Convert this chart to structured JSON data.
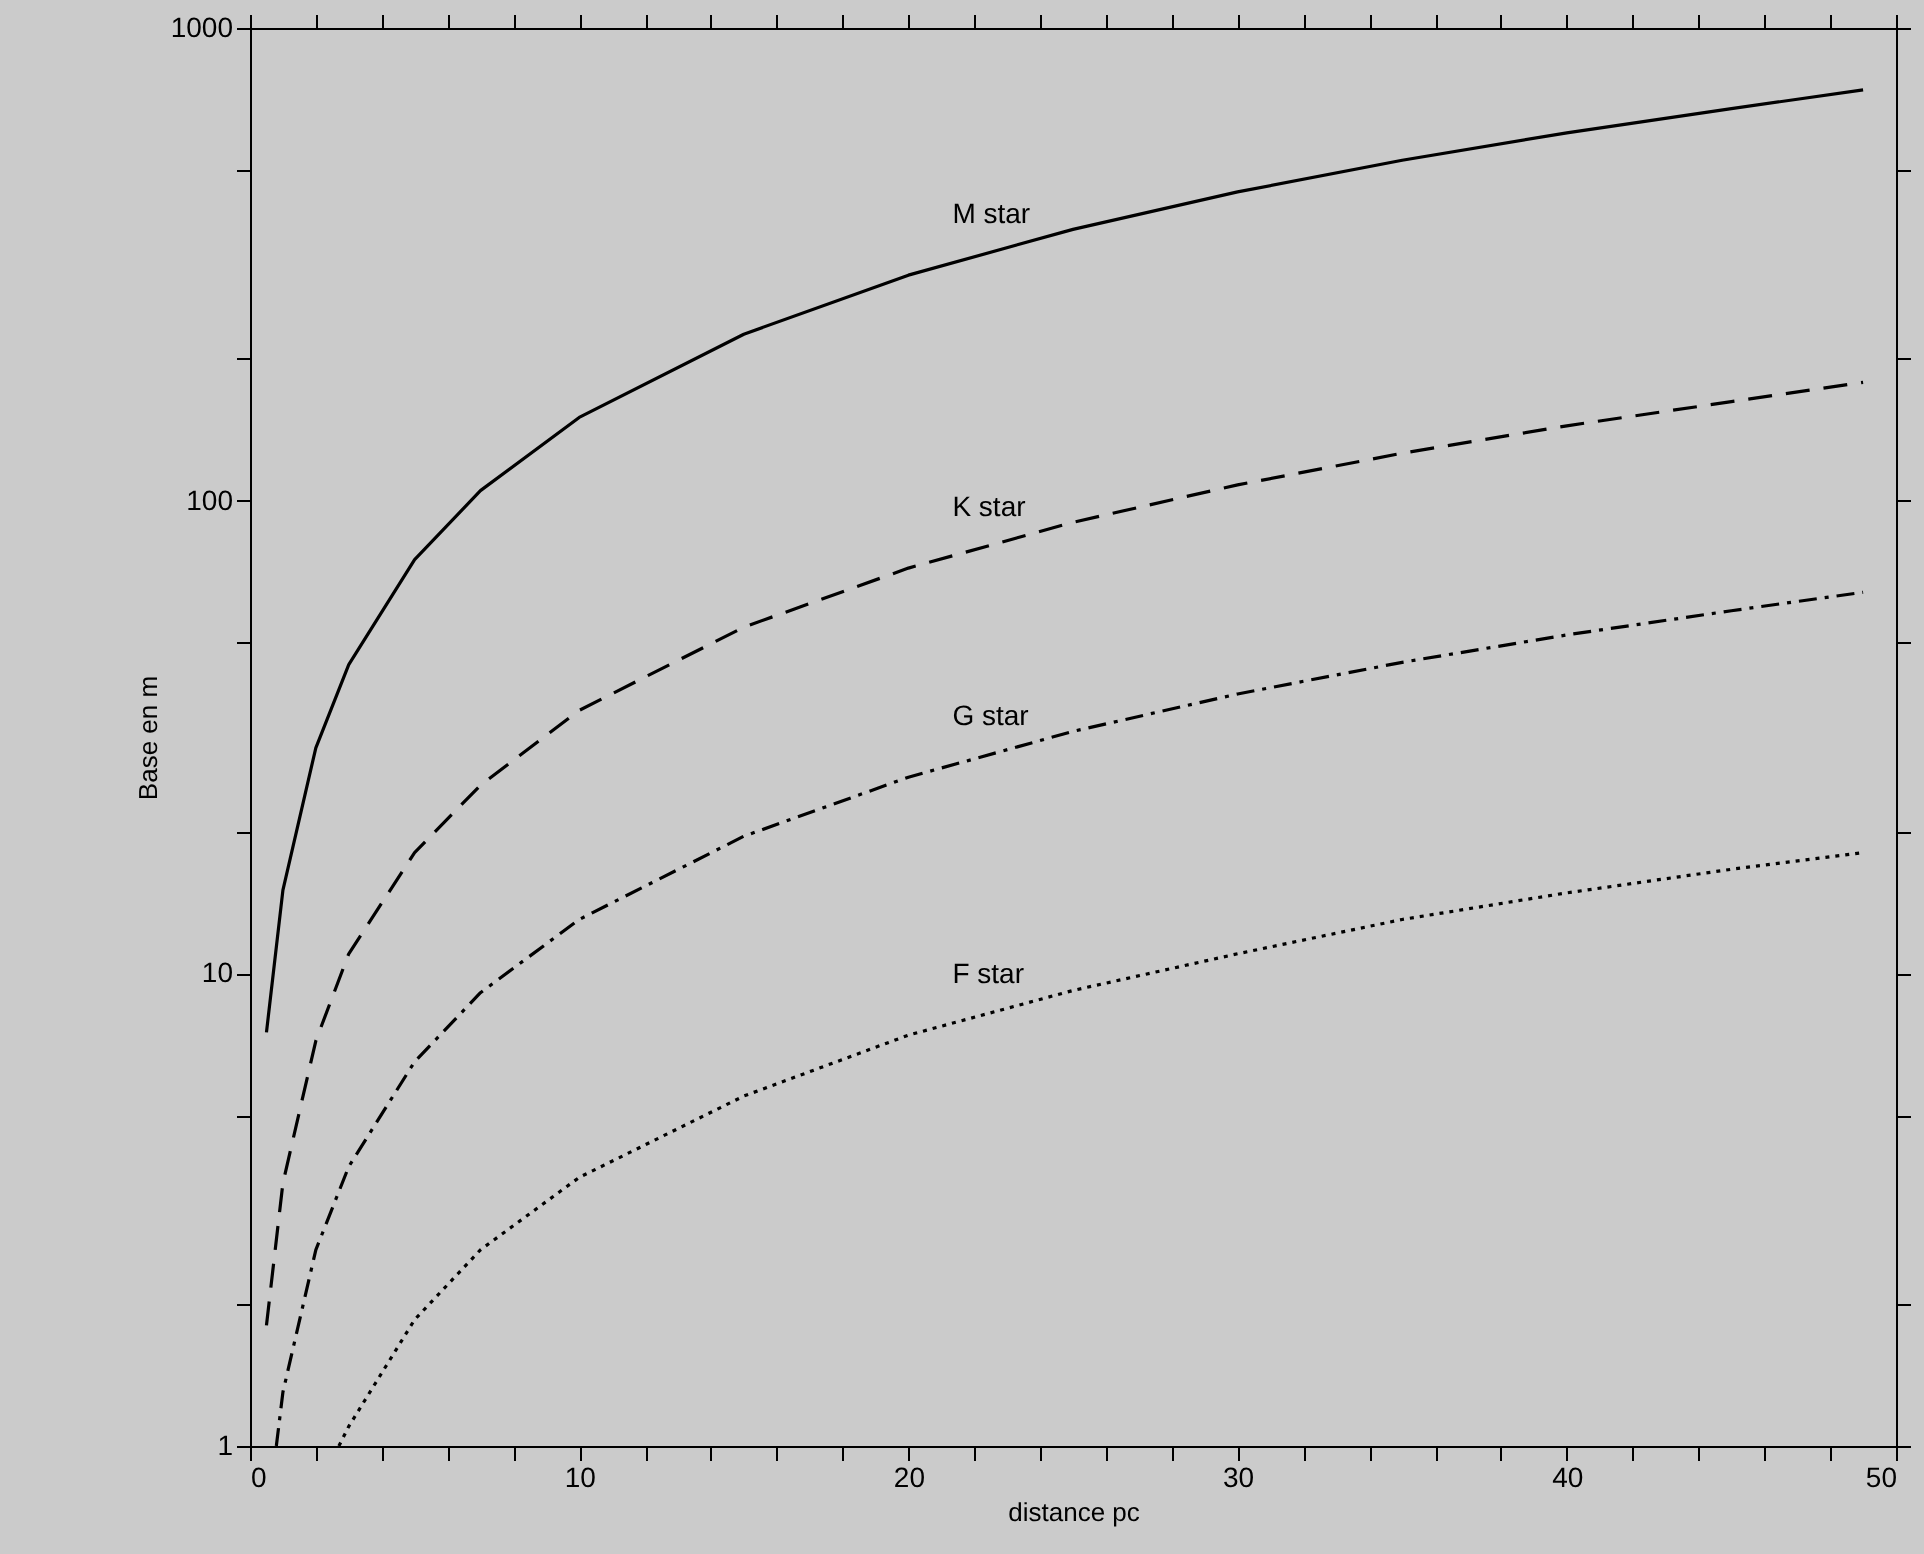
{
  "chart_data": {
    "type": "line",
    "xlabel": "distance pc",
    "ylabel": "Base en m",
    "log": "y",
    "grid": false,
    "marker": "none",
    "xlim": [
      0,
      50
    ],
    "ylim": [
      1,
      1000
    ],
    "xticks": [
      0,
      {
        "value": 2,
        "label": null
      },
      {
        "value": 4,
        "label": null
      },
      {
        "value": 6,
        "label": null
      },
      {
        "value": 8,
        "label": null
      },
      10,
      {
        "value": 12,
        "label": null
      },
      {
        "value": 14,
        "label": null
      },
      {
        "value": 16,
        "label": null
      },
      {
        "value": 18,
        "label": null
      },
      20,
      {
        "value": 22,
        "label": null
      },
      {
        "value": 24,
        "label": null
      },
      {
        "value": 26,
        "label": null
      },
      {
        "value": 28,
        "label": null
      },
      30,
      {
        "value": 32,
        "label": null
      },
      {
        "value": 34,
        "label": null
      },
      {
        "value": 36,
        "label": null
      },
      {
        "value": 38,
        "label": null
      },
      40,
      {
        "value": 42,
        "label": null
      },
      {
        "value": 44,
        "label": null
      },
      {
        "value": 46,
        "label": null
      },
      {
        "value": 48,
        "label": null
      },
      50
    ],
    "yticks": [
      1,
      {
        "value": 2,
        "label": null
      },
      {
        "value": 5,
        "label": null
      },
      10,
      {
        "value": 20,
        "label": null
      },
      {
        "value": 50,
        "label": null
      },
      100,
      {
        "value": 200,
        "label": null
      },
      {
        "value": 500,
        "label": null
      },
      1000
    ],
    "series": [
      {
        "name": "M star",
        "color": "#000000",
        "line_style": "solid",
        "x": [
          0.5,
          1,
          2,
          3,
          5,
          7,
          10,
          15,
          20,
          25,
          30,
          35,
          40,
          45,
          49
        ],
        "values": [
          7.5,
          15,
          30,
          45,
          75,
          105,
          150,
          225,
          300,
          375,
          450,
          525,
          600,
          675,
          740
        ]
      },
      {
        "name": "K star",
        "color": "#000000",
        "line_style": "dashed",
        "x": [
          0.5,
          1,
          2,
          3,
          5,
          7,
          10,
          15,
          20,
          25,
          30,
          35,
          40,
          45,
          49
        ],
        "values": [
          1.8,
          3.6,
          7.2,
          11,
          18,
          25,
          36,
          54,
          72,
          90,
          108,
          126,
          144,
          162,
          178
        ]
      },
      {
        "name": "G star",
        "color": "#000000",
        "line_style": "dashdot",
        "x": [
          0.8,
          1,
          2,
          3,
          5,
          7,
          10,
          15,
          20,
          25,
          30,
          35,
          40,
          45,
          49
        ],
        "values": [
          1,
          1.3,
          2.6,
          3.9,
          6.5,
          9.1,
          13,
          19.5,
          26,
          32.5,
          39,
          45.5,
          52,
          58.5,
          64
        ]
      },
      {
        "name": "F star",
        "color": "#000000",
        "line_style": "dotted",
        "x": [
          2.7,
          3,
          5,
          7,
          10,
          15,
          20,
          25,
          30,
          35,
          40,
          45,
          49
        ],
        "values": [
          1,
          1.1,
          1.85,
          2.6,
          3.7,
          5.5,
          7.4,
          9.2,
          11,
          13,
          14.8,
          16.6,
          18
        ]
      }
    ]
  }
}
